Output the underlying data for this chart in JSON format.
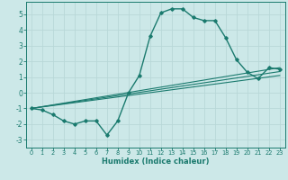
{
  "xlabel": "Humidex (Indice chaleur)",
  "background_color": "#cce8e8",
  "grid_color": "#b8d8d8",
  "line_color": "#1a7a6e",
  "xlim": [
    -0.5,
    23.5
  ],
  "ylim": [
    -3.5,
    5.8
  ],
  "yticks": [
    -3,
    -2,
    -1,
    0,
    1,
    2,
    3,
    4,
    5
  ],
  "xticks": [
    0,
    1,
    2,
    3,
    4,
    5,
    6,
    7,
    8,
    9,
    10,
    11,
    12,
    13,
    14,
    15,
    16,
    17,
    18,
    19,
    20,
    21,
    22,
    23
  ],
  "series": [
    {
      "x": [
        0,
        1,
        2,
        3,
        4,
        5,
        6,
        7,
        8,
        9,
        10,
        11,
        12,
        13,
        14,
        15,
        16,
        17,
        18,
        19,
        20,
        21,
        22,
        23
      ],
      "y": [
        -1.0,
        -1.1,
        -1.4,
        -1.8,
        -2.0,
        -1.8,
        -1.8,
        -2.7,
        -1.8,
        0.0,
        1.1,
        3.6,
        5.1,
        5.35,
        5.35,
        4.8,
        4.6,
        4.6,
        3.5,
        2.1,
        1.3,
        0.9,
        1.6,
        1.5
      ],
      "has_markers": true,
      "linewidth": 1.0
    },
    {
      "x": [
        0,
        23
      ],
      "y": [
        -1.0,
        1.6
      ],
      "has_markers": false,
      "linewidth": 0.8
    },
    {
      "x": [
        0,
        23
      ],
      "y": [
        -1.0,
        1.35
      ],
      "has_markers": false,
      "linewidth": 0.8
    },
    {
      "x": [
        0,
        23
      ],
      "y": [
        -1.0,
        1.1
      ],
      "has_markers": false,
      "linewidth": 0.8
    }
  ]
}
